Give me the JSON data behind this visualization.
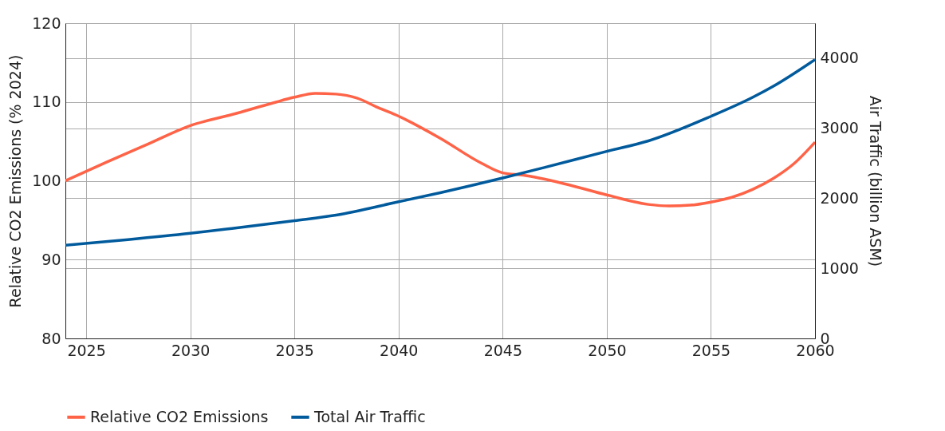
{
  "chart_data": {
    "type": "line",
    "xlabel": null,
    "ylabel": "Relative CO2 Emissions (% 2024)",
    "y2label": "Air Traffic (billion ASM)",
    "xlim": [
      2024,
      2060
    ],
    "xticks": [
      2025,
      2030,
      2035,
      2040,
      2045,
      2050,
      2055,
      2060
    ],
    "ylim": [
      80,
      120
    ],
    "yticks": [
      80,
      90,
      100,
      110,
      120
    ],
    "y2lim": [
      0,
      4500
    ],
    "y2ticks": [
      0,
      1000,
      2000,
      3000,
      4000
    ],
    "grid": true,
    "legend": "bottom",
    "marker": "none",
    "line_style": "solid",
    "series": [
      {
        "name": "Relative CO2 Emissions",
        "color": "#ff6347",
        "x": [
          2024,
          2026,
          2028,
          2030,
          2032,
          2034,
          2035,
          2036,
          2037,
          2038,
          2039,
          2040,
          2042,
          2044,
          2045,
          2046,
          2048,
          2050,
          2052,
          2053,
          2054,
          2055,
          2056,
          2057,
          2058,
          2059,
          2060
        ],
        "values": [
          100,
          102.4,
          104.7,
          107,
          108.4,
          109.9,
          110.6,
          111.1,
          111.0,
          110.5,
          109.3,
          108.2,
          105.4,
          102.2,
          101.0,
          100.7,
          99.6,
          98.2,
          97.0,
          96.8,
          96.9,
          97.3,
          97.9,
          98.9,
          100.3,
          102.2,
          104.9
        ]
      },
      {
        "name": "Total Air Traffic",
        "color": "#005a9c",
        "axis": "y2",
        "x": [
          2024,
          2027,
          2030,
          2032,
          2035,
          2037,
          2040,
          2042,
          2045,
          2047,
          2050,
          2052,
          2055,
          2057,
          2058,
          2060
        ],
        "values": [
          1330,
          1410,
          1500,
          1570,
          1680,
          1760,
          1950,
          2080,
          2290,
          2440,
          2670,
          2820,
          3170,
          3440,
          3600,
          3980
        ]
      }
    ]
  }
}
